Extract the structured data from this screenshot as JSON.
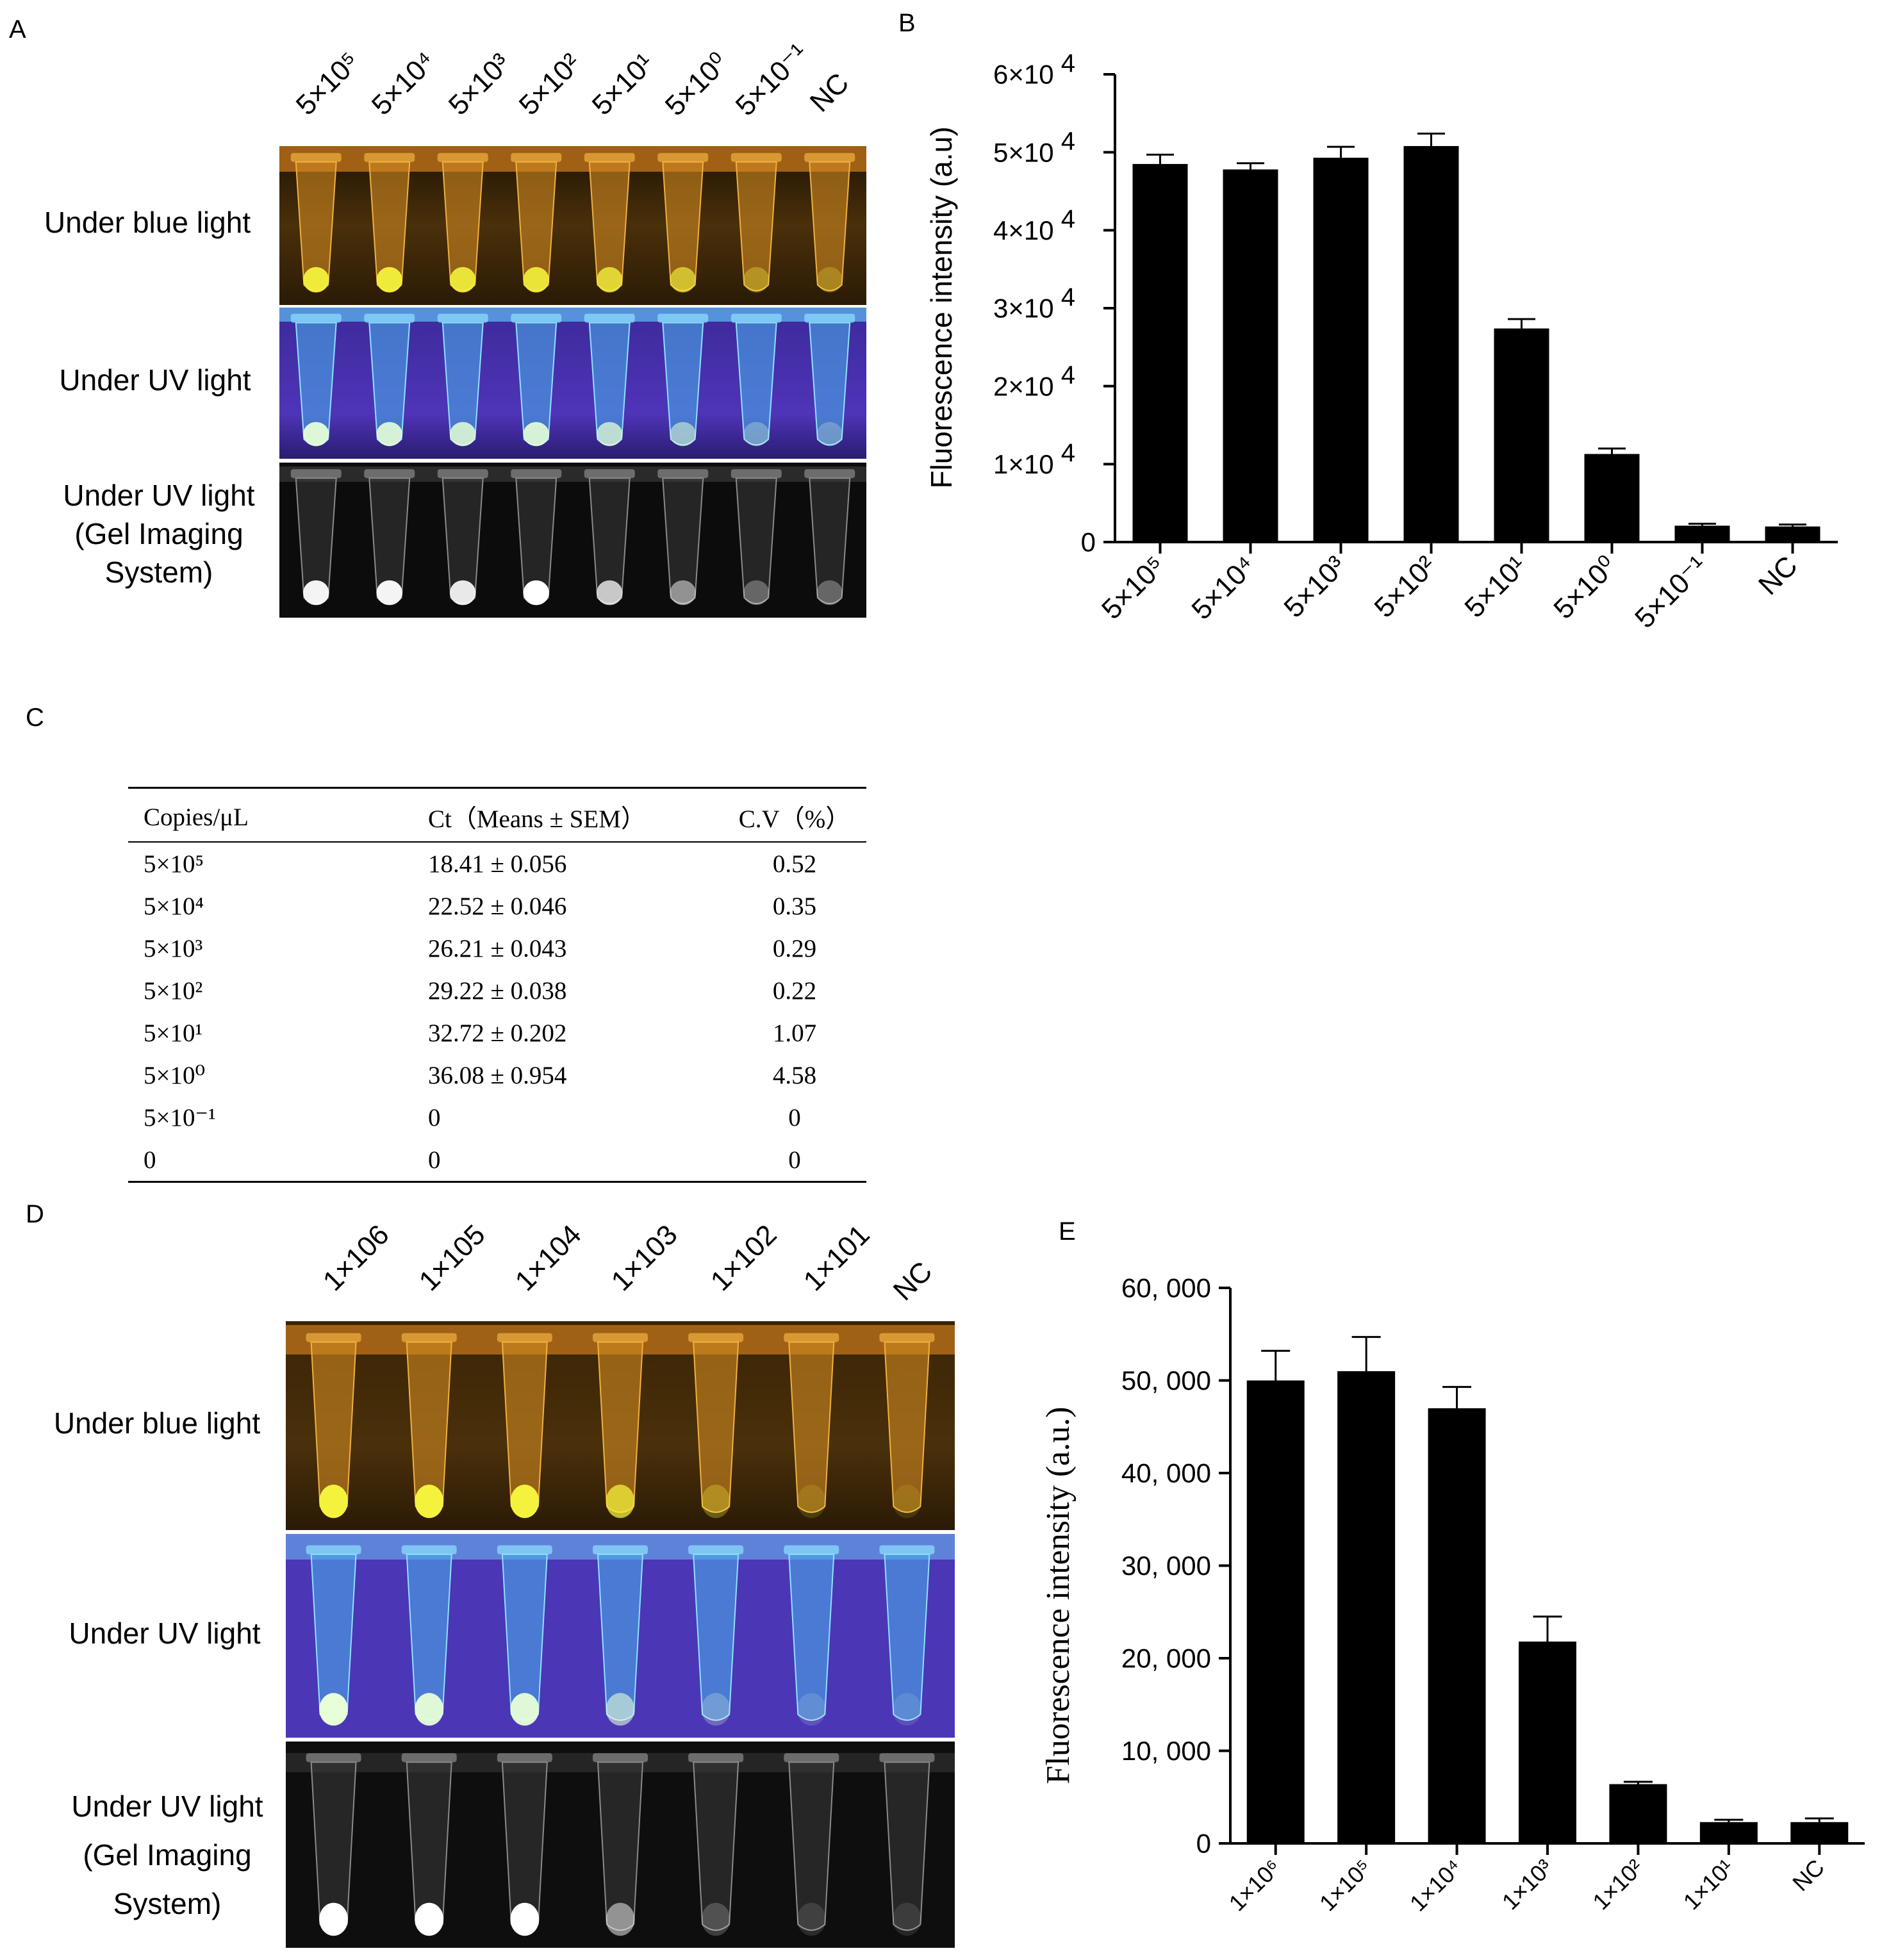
{
  "panels": {
    "a": {
      "letter": "A"
    },
    "b": {
      "letter": "B"
    },
    "c": {
      "letter": "C"
    },
    "d": {
      "letter": "D"
    },
    "e": {
      "letter": "E"
    }
  },
  "panel_a": {
    "lane_labels": [
      "5×10⁵",
      "5×10⁴",
      "5×10³",
      "5×10²",
      "5×10¹",
      "5×10⁰",
      "5×10⁻¹",
      "NC"
    ],
    "rows": [
      {
        "line1": "Under blue light",
        "line2": "",
        "line3": ""
      },
      {
        "line1": "Under UV light",
        "line2": "",
        "line3": ""
      },
      {
        "line1": "Under UV light",
        "line2": "(Gel Imaging",
        "line3": "System)"
      }
    ],
    "colors": {
      "blue_light_bg": "#3a2608",
      "tube_orange": "#d98f1e",
      "fluor_yellow": "#f2f03a",
      "uv_bg": "#4a2fb0",
      "uv_tube": "#5fd0f0",
      "gel_bg": "#0d0d0d"
    }
  },
  "panel_d": {
    "lane_labels": [
      "1×106",
      "1×105",
      "1×104",
      "1×103",
      "1×102",
      "1×101",
      "NC"
    ],
    "rows": [
      {
        "line1": "Under blue light",
        "line2": "",
        "line3": ""
      },
      {
        "line1": "Under UV light",
        "line2": "",
        "line3": ""
      },
      {
        "line1": "Under UV light",
        "line2": "(Gel Imaging",
        "line3": "System)"
      }
    ]
  },
  "table_c": {
    "headers": [
      "Copies/μL",
      "Ct（Means ± SEM）",
      "C.V（%）"
    ],
    "rows": [
      {
        "copies": "5×10⁵",
        "ct": "18.41 ± 0.056",
        "cv": "0.52"
      },
      {
        "copies": "5×10⁴",
        "ct": "22.52 ± 0.046",
        "cv": "0.35"
      },
      {
        "copies": "5×10³",
        "ct": "26.21 ± 0.043",
        "cv": "0.29"
      },
      {
        "copies": "5×10²",
        "ct": "29.22 ± 0.038",
        "cv": "0.22"
      },
      {
        "copies": "5×10¹",
        "ct": "32.72 ± 0.202",
        "cv": "1.07"
      },
      {
        "copies": "5×10⁰",
        "ct": "36.08 ± 0.954",
        "cv": "4.58"
      },
      {
        "copies": "5×10⁻¹",
        "ct": "0",
        "cv": "0"
      },
      {
        "copies": "0",
        "ct": "0",
        "cv": "0"
      }
    ]
  },
  "chart_data": [
    {
      "id": "B",
      "type": "bar",
      "title": "",
      "xlabel": "",
      "ylabel": "Fluorescence intensity (a.u)",
      "categories": [
        "5×10⁵",
        "5×10⁴",
        "5×10³",
        "5×10²",
        "5×10¹",
        "5×10⁰",
        "5×10⁻¹",
        "NC"
      ],
      "values": [
        48500,
        47800,
        49300,
        50800,
        27400,
        11300,
        2100,
        2000
      ],
      "errors": [
        1200,
        800,
        1400,
        1600,
        1200,
        700,
        250,
        250
      ],
      "ylim": [
        0,
        60000
      ],
      "yticks": [
        {
          "value": 0,
          "label": "0",
          "exp": ""
        },
        {
          "value": 10000,
          "label": "1×10",
          "exp": "4"
        },
        {
          "value": 20000,
          "label": "2×10",
          "exp": "4"
        },
        {
          "value": 30000,
          "label": "3×10",
          "exp": "4"
        },
        {
          "value": 40000,
          "label": "4×10",
          "exp": "4"
        },
        {
          "value": 50000,
          "label": "5×10",
          "exp": "4"
        },
        {
          "value": 60000,
          "label": "6×10",
          "exp": "4"
        }
      ]
    },
    {
      "id": "E",
      "type": "bar",
      "title": "",
      "xlabel": "",
      "ylabel": "Fluorescence intensity (a.u.)",
      "categories": [
        "1×10⁶",
        "1×10⁵",
        "1×10⁴",
        "1×10³",
        "1×10²",
        "1×10¹",
        "NC"
      ],
      "values": [
        50000,
        51000,
        47000,
        21800,
        6400,
        2300,
        2300
      ],
      "errors": [
        3200,
        3700,
        2300,
        2700,
        250,
        250,
        400
      ],
      "ylim": [
        0,
        60000
      ],
      "yticks": [
        {
          "value": 0,
          "label": "0",
          "exp": ""
        },
        {
          "value": 10000,
          "label": "10, 000",
          "exp": ""
        },
        {
          "value": 20000,
          "label": "20, 000",
          "exp": ""
        },
        {
          "value": 30000,
          "label": "30, 000",
          "exp": ""
        },
        {
          "value": 40000,
          "label": "40, 000",
          "exp": ""
        },
        {
          "value": 50000,
          "label": "50, 000",
          "exp": ""
        },
        {
          "value": 60000,
          "label": "60, 000",
          "exp": ""
        }
      ]
    }
  ]
}
